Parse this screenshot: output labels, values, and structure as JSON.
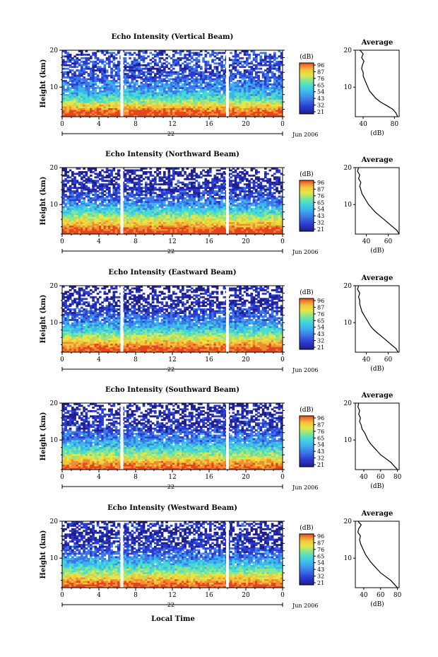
{
  "figure": {
    "xlabel_bottom": "Local Time",
    "date_label": "Jun 2006",
    "day_label": "22",
    "profile_title": "Average"
  },
  "colorbar": {
    "unit": "(dB)",
    "labels": [
      "96",
      "87",
      "76",
      "65",
      "54",
      "43",
      "32",
      "21"
    ]
  },
  "colors": {
    "scale": [
      "#1e1e8c",
      "#2c3cd2",
      "#3c78e6",
      "#3cb4f0",
      "#46dcd2",
      "#8ce68c",
      "#e6e646",
      "#f0c83c",
      "#f08c32",
      "#e6461e"
    ],
    "gap": "#ffffff"
  },
  "chart_data": [
    {
      "type": "heatmap",
      "title": "Echo Intensity (Vertical Beam)",
      "ylabel": "Height (km)",
      "ylim": [
        2,
        20
      ],
      "yticks": [
        "20",
        "10"
      ],
      "xlim": [
        0,
        24
      ],
      "xticks": [
        "0",
        "4",
        "8",
        "12",
        "16",
        "20",
        "0"
      ],
      "data_gaps_hours": [
        6.5,
        18.0
      ],
      "profile": {
        "title": "Average",
        "xlabel": "(dB)",
        "xticks": [
          "40",
          "80"
        ],
        "xlim": [
          30,
          86
        ],
        "height_km": [
          2,
          3,
          4,
          5,
          6,
          7,
          8,
          9,
          10,
          11,
          12,
          13,
          14,
          15,
          16,
          17,
          18,
          19,
          20
        ],
        "db": [
          84,
          82,
          78,
          70,
          62,
          56,
          52,
          48,
          46,
          44,
          42,
          40,
          40,
          38,
          39,
          41,
          38,
          40,
          36
        ]
      }
    },
    {
      "type": "heatmap",
      "title": "Echo Intensity (Northward Beam)",
      "ylabel": "Height (km)",
      "ylim": [
        2,
        20
      ],
      "yticks": [
        "20",
        "10"
      ],
      "xlim": [
        0,
        24
      ],
      "xticks": [
        "0",
        "4",
        "8",
        "12",
        "16",
        "20",
        "0"
      ],
      "data_gaps_hours": [
        6.5,
        18.0
      ],
      "profile": {
        "title": "Average",
        "xlabel": "(dB)",
        "xticks": [
          "40",
          "60"
        ],
        "xlim": [
          30,
          70
        ],
        "height_km": [
          2,
          3,
          4,
          5,
          6,
          7,
          8,
          9,
          10,
          11,
          12,
          13,
          14,
          15,
          16,
          17,
          18,
          19,
          20
        ],
        "db": [
          70,
          68,
          64,
          60,
          56,
          52,
          48,
          45,
          42,
          40,
          38,
          36,
          35,
          34,
          35,
          33,
          34,
          32,
          33
        ]
      }
    },
    {
      "type": "heatmap",
      "title": "Echo Intensity (Eastward Beam)",
      "ylabel": "Height (km)",
      "ylim": [
        2,
        20
      ],
      "yticks": [
        "20",
        "10"
      ],
      "xlim": [
        0,
        24
      ],
      "xticks": [
        "0",
        "4",
        "8",
        "12",
        "16",
        "20",
        "0"
      ],
      "data_gaps_hours": [
        6.5,
        18.0
      ],
      "profile": {
        "title": "Average",
        "xlabel": "(dB)",
        "xticks": [
          "40",
          "60"
        ],
        "xlim": [
          30,
          70
        ],
        "height_km": [
          2,
          3,
          4,
          5,
          6,
          7,
          8,
          9,
          10,
          11,
          12,
          13,
          14,
          15,
          16,
          17,
          18,
          19,
          20
        ],
        "db": [
          69,
          67,
          63,
          59,
          55,
          51,
          47,
          44,
          42,
          40,
          38,
          36,
          35,
          34,
          34,
          33,
          34,
          32,
          33
        ]
      }
    },
    {
      "type": "heatmap",
      "title": "Echo Intensity (Southward Beam)",
      "ylabel": "Height (km)",
      "ylim": [
        2,
        20
      ],
      "yticks": [
        "20",
        "10"
      ],
      "xlim": [
        0,
        24
      ],
      "xticks": [
        "0",
        "4",
        "8",
        "12",
        "16",
        "20",
        "0"
      ],
      "data_gaps_hours": [
        6.5,
        18.0
      ],
      "profile": {
        "title": "Average",
        "xlabel": "(dB)",
        "xticks": [
          "40",
          "60",
          "80"
        ],
        "xlim": [
          30,
          82
        ],
        "height_km": [
          2,
          3,
          4,
          5,
          6,
          7,
          8,
          9,
          10,
          11,
          12,
          13,
          14,
          15,
          16,
          17,
          18,
          19,
          20
        ],
        "db": [
          80,
          76,
          72,
          66,
          60,
          56,
          52,
          48,
          45,
          43,
          41,
          38,
          37,
          35,
          36,
          34,
          35,
          33,
          34
        ]
      }
    },
    {
      "type": "heatmap",
      "title": "Echo Intensity (Westward Beam)",
      "ylabel": "Height (km)",
      "ylim": [
        2,
        20
      ],
      "yticks": [
        "20",
        "10"
      ],
      "xlim": [
        0,
        24
      ],
      "xticks": [
        "0",
        "4",
        "8",
        "12",
        "16",
        "20",
        "0"
      ],
      "data_gaps_hours": [
        6.5,
        18.0
      ],
      "profile": {
        "title": "Average",
        "xlabel": "(dB)",
        "xticks": [
          "40",
          "60",
          "80"
        ],
        "xlim": [
          30,
          82
        ],
        "height_km": [
          2,
          3,
          4,
          5,
          6,
          7,
          8,
          9,
          10,
          11,
          12,
          13,
          14,
          15,
          16,
          17,
          18,
          19,
          20
        ],
        "db": [
          80,
          76,
          72,
          66,
          60,
          56,
          52,
          48,
          45,
          42,
          40,
          38,
          36,
          35,
          36,
          33,
          34,
          37,
          33
        ]
      }
    }
  ]
}
